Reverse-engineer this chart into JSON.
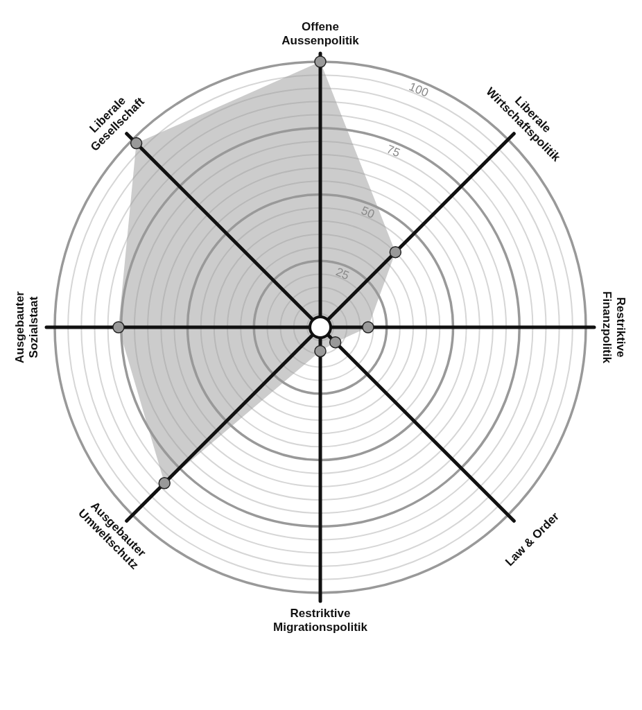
{
  "chart_data": {
    "type": "radar",
    "categories": [
      "Offene Aussenpolitik",
      "Liberale Wirtschaftspolitik",
      "Restriktive Finanzpolitik",
      "Law & Order",
      "Restriktive Migrationspolitik",
      "Ausgebauter Umweltschutz",
      "Ausgebauter Sozialstaat",
      "Liberale Gesellschaft"
    ],
    "series": [
      {
        "color": "#999999",
        "values": [
          100,
          40,
          18,
          8,
          9,
          83,
          76,
          98
        ]
      }
    ],
    "ylim": [
      0,
      100
    ],
    "yticks": [
      25,
      50,
      75,
      100
    ],
    "grid": true,
    "marker": "circle"
  }
}
